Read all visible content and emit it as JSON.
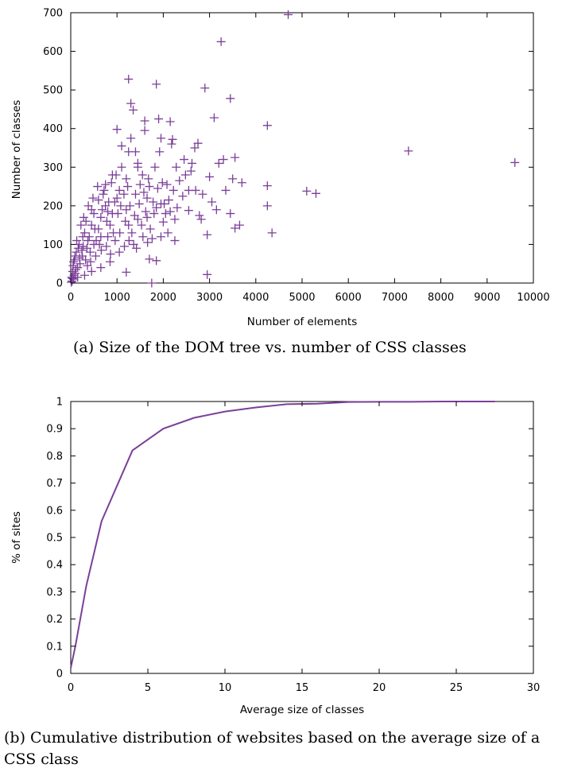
{
  "chart_data": [
    {
      "type": "scatter",
      "title": "",
      "xlabel": "Number of elements",
      "ylabel": "Number of classes",
      "xlim": [
        0,
        10000
      ],
      "ylim": [
        0,
        700
      ],
      "xticks": [
        0,
        1000,
        2000,
        3000,
        4000,
        5000,
        6000,
        7000,
        8000,
        9000,
        10000
      ],
      "yticks": [
        0,
        100,
        200,
        300,
        400,
        500,
        600,
        700
      ],
      "grid": false,
      "marker": "plus",
      "color": "#7B3F98",
      "series": [
        {
          "points": [
            [
              4700,
              695
            ],
            [
              3250,
              625
            ],
            [
              1250,
              528
            ],
            [
              1850,
              515
            ],
            [
              2900,
              505
            ],
            [
              3450,
              478
            ],
            [
              1300,
              465
            ],
            [
              1350,
              448
            ],
            [
              3100,
              428
            ],
            [
              1900,
              425
            ],
            [
              2150,
              418
            ],
            [
              1600,
              420
            ],
            [
              4250,
              408
            ],
            [
              1000,
              398
            ],
            [
              7300,
              342
            ],
            [
              9600,
              312
            ],
            [
              5100,
              238
            ],
            [
              5300,
              232
            ],
            [
              4250,
              252
            ],
            [
              4250,
              200
            ],
            [
              4350,
              130
            ],
            [
              3650,
              150
            ],
            [
              3550,
              142
            ],
            [
              3450,
              180
            ],
            [
              3050,
              210
            ],
            [
              3000,
              275
            ],
            [
              2950,
              125
            ],
            [
              2950,
              22
            ],
            [
              1750,
              0
            ],
            [
              1850,
              58
            ],
            [
              1700,
              62
            ],
            [
              1200,
              28
            ],
            [
              2750,
              362
            ],
            [
              2850,
              230
            ],
            [
              2600,
              290
            ],
            [
              2700,
              240
            ],
            [
              2550,
              188
            ],
            [
              2250,
              110
            ],
            [
              2150,
              185
            ],
            [
              2000,
              158
            ],
            [
              1950,
              120
            ],
            [
              1800,
              180
            ],
            [
              1650,
              220
            ],
            [
              1500,
              255
            ],
            [
              1450,
              300
            ],
            [
              1400,
              340
            ],
            [
              1550,
              280
            ],
            [
              1100,
              300
            ],
            [
              1200,
              270
            ],
            [
              1050,
              240
            ],
            [
              950,
              210
            ],
            [
              900,
              180
            ],
            [
              850,
              150
            ],
            [
              800,
              120
            ],
            [
              750,
              200
            ],
            [
              700,
              230
            ],
            [
              650,
              170
            ],
            [
              600,
              140
            ],
            [
              550,
              110
            ],
            [
              500,
              180
            ],
            [
              450,
              150
            ],
            [
              400,
              120
            ],
            [
              350,
              90
            ],
            [
              300,
              130
            ],
            [
              250,
              70
            ],
            [
              200,
              50
            ],
            [
              150,
              40
            ],
            [
              120,
              80
            ],
            [
              100,
              25
            ],
            [
              80,
              60
            ],
            [
              60,
              10
            ],
            [
              40,
              30
            ],
            [
              30,
              5
            ],
            [
              20,
              15
            ],
            [
              10,
              2
            ],
            [
              180,
              100
            ],
            [
              220,
              150
            ],
            [
              280,
              170
            ],
            [
              320,
              60
            ],
            [
              380,
              200
            ],
            [
              420,
              80
            ],
            [
              480,
              220
            ],
            [
              520,
              140
            ],
            [
              580,
              250
            ],
            [
              620,
              100
            ],
            [
              680,
              190
            ],
            [
              720,
              240
            ],
            [
              780,
              160
            ],
            [
              820,
              210
            ],
            [
              880,
              260
            ],
            [
              920,
              130
            ],
            [
              980,
              280
            ],
            [
              1020,
              180
            ],
            [
              1080,
              200
            ],
            [
              1150,
              230
            ],
            [
              1180,
              160
            ],
            [
              1230,
              250
            ],
            [
              1280,
              200
            ],
            [
              1320,
              130
            ],
            [
              1380,
              175
            ],
            [
              1420,
              90
            ],
            [
              1480,
              205
            ],
            [
              1530,
              150
            ],
            [
              1580,
              235
            ],
            [
              1620,
              185
            ],
            [
              1680,
              270
            ],
            [
              1720,
              140
            ],
            [
              1780,
              210
            ],
            [
              1820,
              300
            ],
            [
              1880,
              245
            ],
            [
              1920,
              340
            ],
            [
              1980,
              260
            ],
            [
              2020,
              205
            ],
            [
              2080,
              255
            ],
            [
              2120,
              215
            ],
            [
              2180,
              360
            ],
            [
              2220,
              240
            ],
            [
              2280,
              300
            ],
            [
              2350,
              265
            ],
            [
              2420,
              225
            ],
            [
              2480,
              280
            ],
            [
              2620,
              310
            ],
            [
              2680,
              350
            ],
            [
              2780,
              175
            ],
            [
              2820,
              165
            ],
            [
              3150,
              190
            ],
            [
              3200,
              310
            ],
            [
              3300,
              320
            ],
            [
              3350,
              240
            ],
            [
              3500,
              270
            ],
            [
              3550,
              325
            ],
            [
              3700,
              260
            ],
            [
              1300,
              375
            ],
            [
              1600,
              395
            ],
            [
              1950,
              375
            ],
            [
              2200,
              372
            ],
            [
              1450,
              310
            ],
            [
              1250,
              340
            ],
            [
              1100,
              355
            ],
            [
              900,
              280
            ],
            [
              750,
              255
            ],
            [
              600,
              215
            ],
            [
              450,
              190
            ],
            [
              330,
              160
            ],
            [
              260,
              120
            ],
            [
              160,
              90
            ],
            [
              90,
              70
            ],
            [
              50,
              45
            ],
            [
              70,
              20
            ],
            [
              130,
              110
            ],
            [
              240,
              85
            ],
            [
              360,
              45
            ],
            [
              430,
              55
            ],
            [
              540,
              70
            ],
            [
              660,
              85
            ],
            [
              770,
              95
            ],
            [
              860,
              75
            ],
            [
              960,
              110
            ],
            [
              1060,
              130
            ],
            [
              1160,
              95
            ],
            [
              1260,
              110
            ],
            [
              1360,
              100
            ],
            [
              1560,
              120
            ],
            [
              1660,
              105
            ],
            [
              1760,
              115
            ],
            [
              2050,
              180
            ],
            [
              2300,
              195
            ],
            [
              2450,
              320
            ],
            [
              2550,
              240
            ],
            [
              1950,
              205
            ],
            [
              1700,
              250
            ],
            [
              1400,
              230
            ],
            [
              1200,
              190
            ],
            [
              1000,
              220
            ],
            [
              800,
              185
            ],
            [
              650,
              120
            ],
            [
              500,
              100
            ],
            [
              370,
              110
            ],
            [
              270,
              95
            ],
            [
              190,
              65
            ],
            [
              110,
              35
            ],
            [
              60,
              55
            ],
            [
              35,
              12
            ],
            [
              150,
              15
            ],
            [
              300,
              20
            ],
            [
              450,
              30
            ],
            [
              650,
              40
            ],
            [
              850,
              55
            ],
            [
              1050,
              80
            ],
            [
              1250,
              150
            ],
            [
              1450,
              165
            ],
            [
              1650,
              170
            ],
            [
              1850,
              195
            ],
            [
              2100,
              130
            ],
            [
              2250,
              165
            ]
          ]
        }
      ]
    },
    {
      "type": "line",
      "title": "",
      "xlabel": "Average size of classes",
      "ylabel": "% of sites",
      "xlim": [
        0,
        30
      ],
      "ylim": [
        0,
        1
      ],
      "xticks": [
        0,
        5,
        10,
        15,
        20,
        25,
        30
      ],
      "yticks": [
        0,
        0.1,
        0.2,
        0.3,
        0.4,
        0.5,
        0.6,
        0.7,
        0.8,
        0.9,
        1
      ],
      "grid": false,
      "color": "#7B3F98",
      "series": [
        {
          "x": [
            0,
            0.3,
            1,
            2,
            4,
            6,
            8,
            10,
            12,
            14,
            16,
            18,
            20,
            22,
            24,
            26,
            27.5
          ],
          "y": [
            0.02,
            0.1,
            0.32,
            0.56,
            0.82,
            0.9,
            0.94,
            0.963,
            0.978,
            0.99,
            0.992,
            0.998,
            0.999,
            0.999,
            1.0,
            1.0,
            1.0
          ]
        }
      ]
    }
  ],
  "captions": {
    "a": "(a) Size of the DOM tree vs. number of CSS classes",
    "b": "(b) Cumulative distribution of websites based on the average size of a CSS class"
  }
}
